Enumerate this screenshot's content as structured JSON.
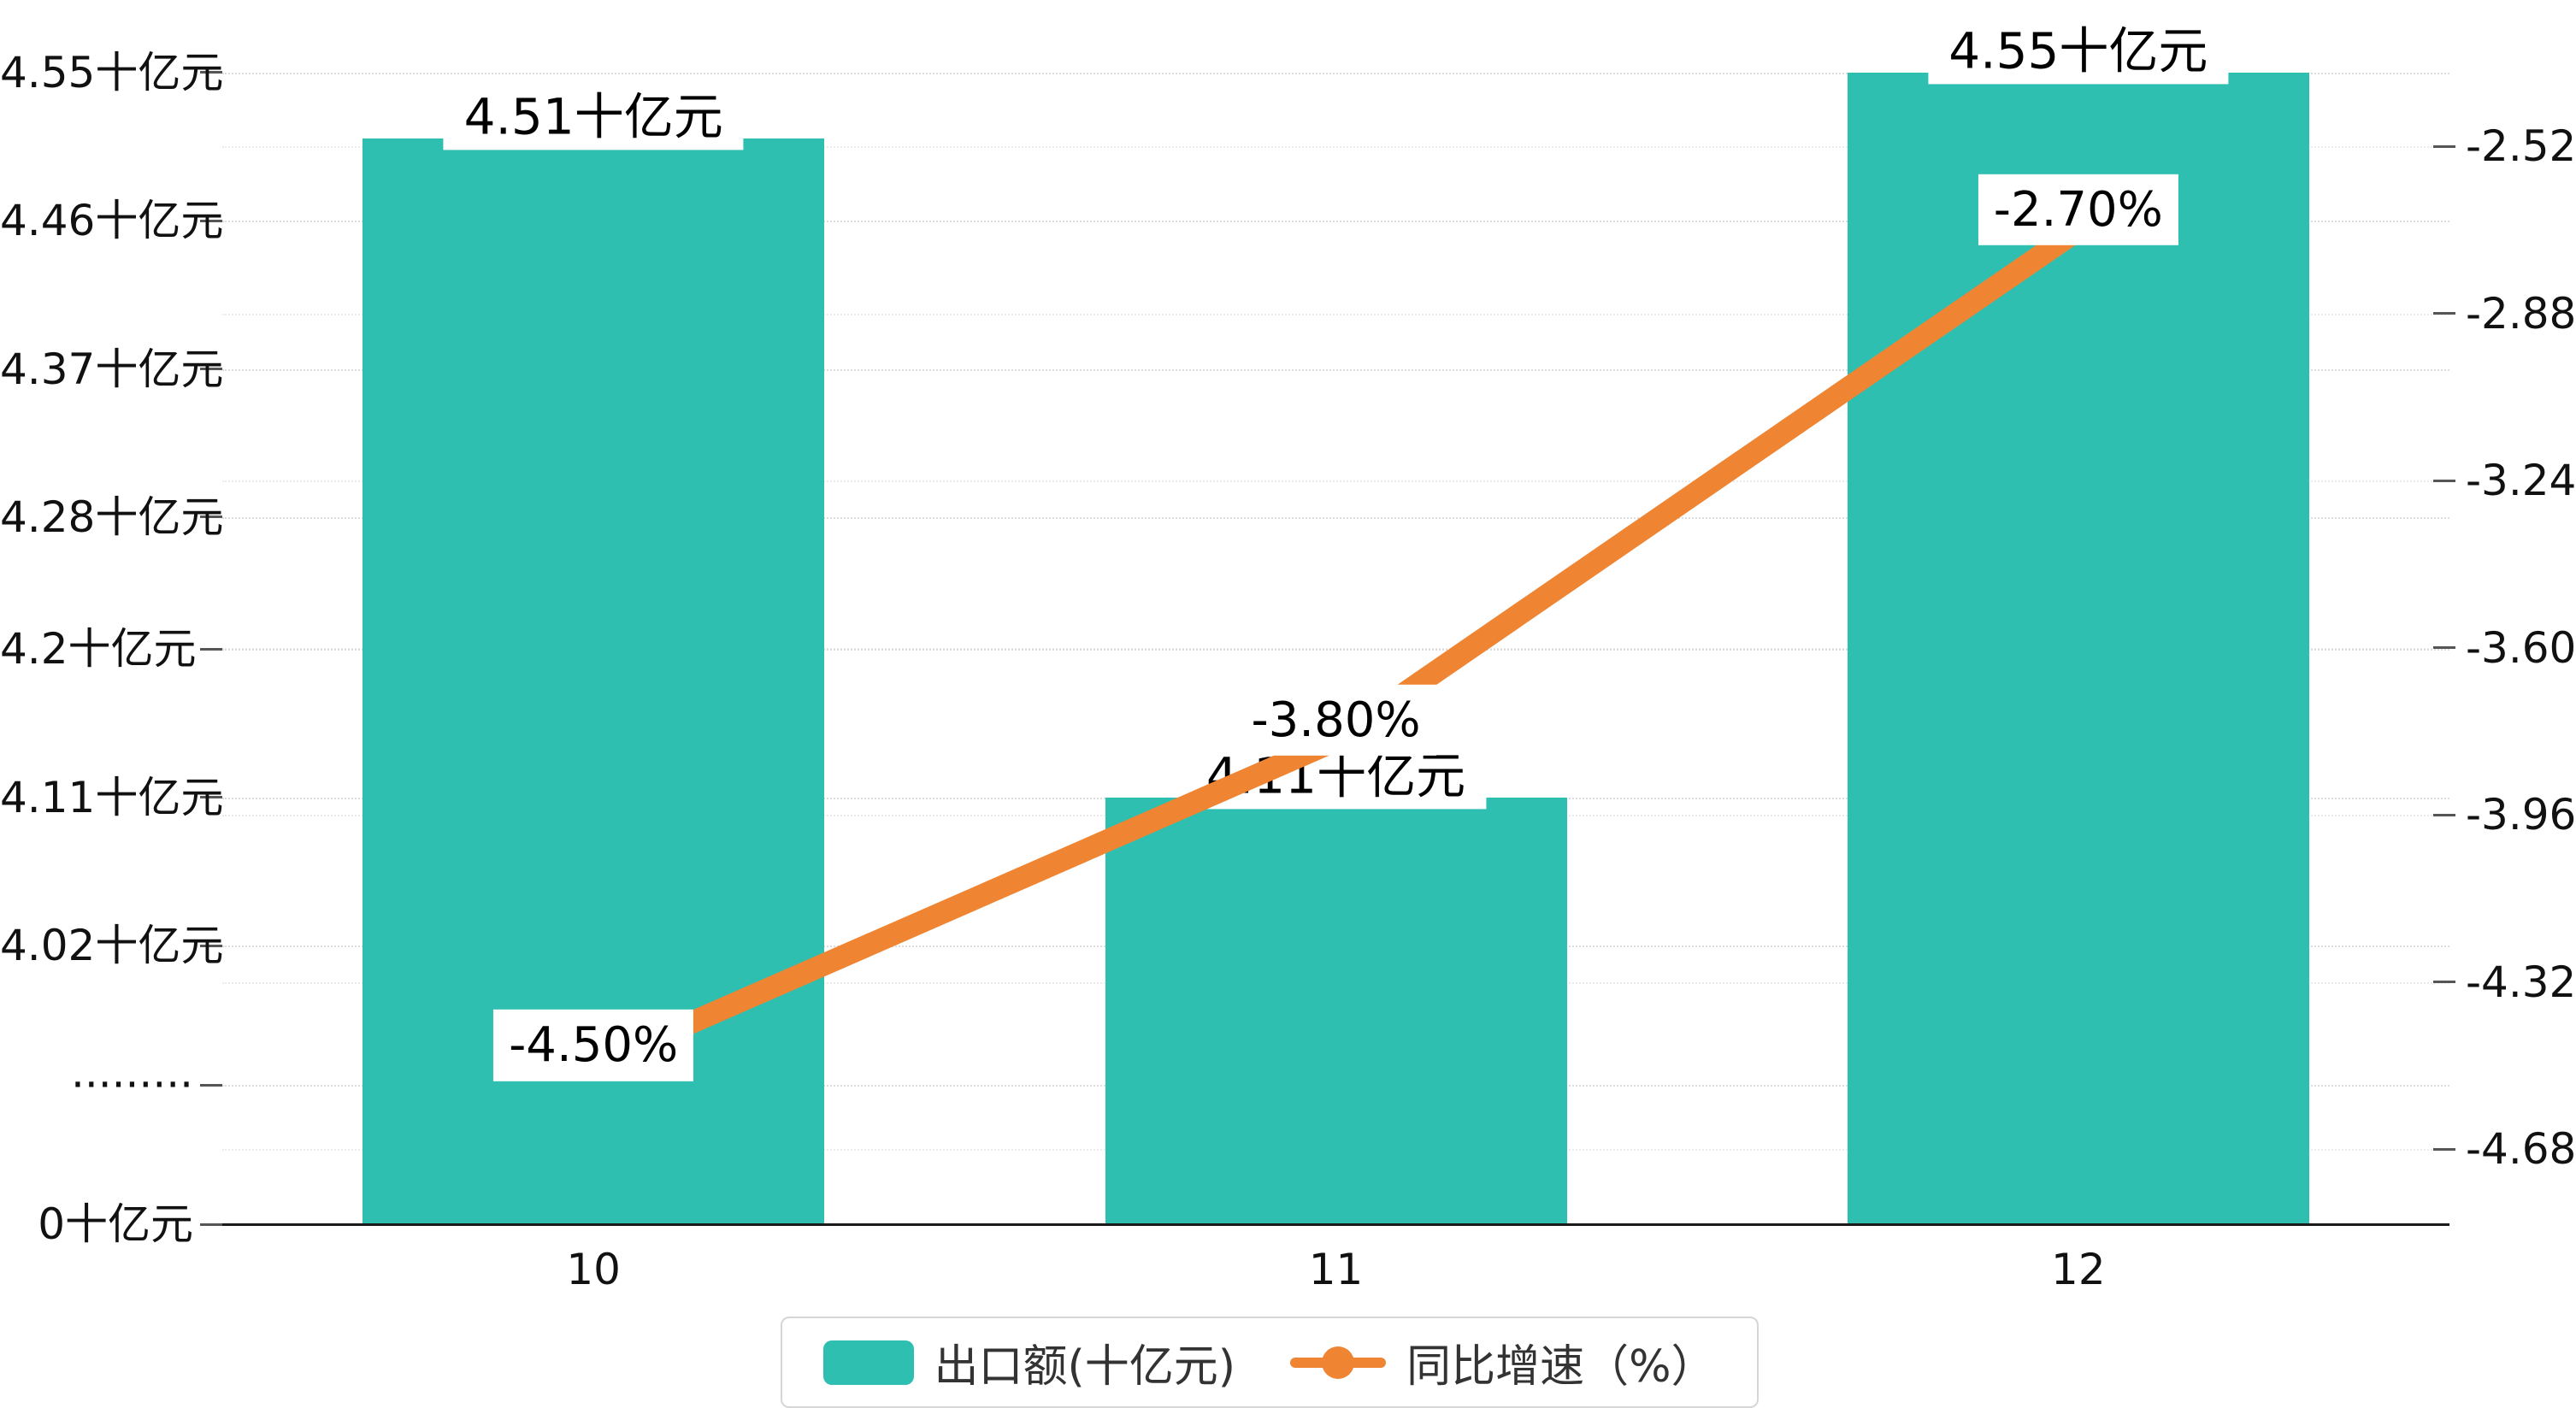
{
  "chart_data": {
    "type": "bar",
    "subtype": "bar+line combo, dual y-axes, broken left axis",
    "title": "",
    "categories": [
      "10",
      "11",
      "12"
    ],
    "series": [
      {
        "name": "出口额(十亿元)",
        "type": "bar",
        "color": "#2ebfb0",
        "values": [
          4.51,
          4.11,
          4.55
        ],
        "labels": [
          "4.51十亿元",
          "4.11十亿元",
          "4.55十亿元"
        ]
      },
      {
        "name": "同比增速（%）",
        "type": "line",
        "color": "#ef8532",
        "values": [
          -4.5,
          -3.8,
          -2.7
        ],
        "labels": [
          "-4.50%",
          "-3.80%",
          "-2.70%"
        ]
      }
    ],
    "left_axis": {
      "unit": "十亿元",
      "tick_labels": [
        "4.55十亿元",
        "4.46十亿元",
        "4.37十亿元",
        "4.28十亿元",
        "4.2十亿元",
        "4.11十亿元",
        "4.02十亿元",
        "·········",
        "0十亿元"
      ],
      "tick_values": [
        4.55,
        4.46,
        4.37,
        4.28,
        4.2,
        4.11,
        4.02,
        "break",
        0
      ],
      "break_between": [
        0,
        4.02
      ]
    },
    "right_axis": {
      "unit": "%",
      "tick_labels": [
        "-2.52",
        "-2.88",
        "-3.24",
        "-3.60",
        "-3.96",
        "-4.32",
        "-4.68"
      ],
      "tick_values": [
        -2.52,
        -2.88,
        -3.24,
        -3.6,
        -3.96,
        -4.32,
        -4.68
      ]
    },
    "grid": true,
    "legend_position": "bottom",
    "legend": [
      {
        "label": "出口额(十亿元)",
        "marker": "bar-swatch",
        "color": "#2ebfb0"
      },
      {
        "label": "同比增速（%）",
        "marker": "line-dot",
        "color": "#ef8532"
      }
    ]
  }
}
